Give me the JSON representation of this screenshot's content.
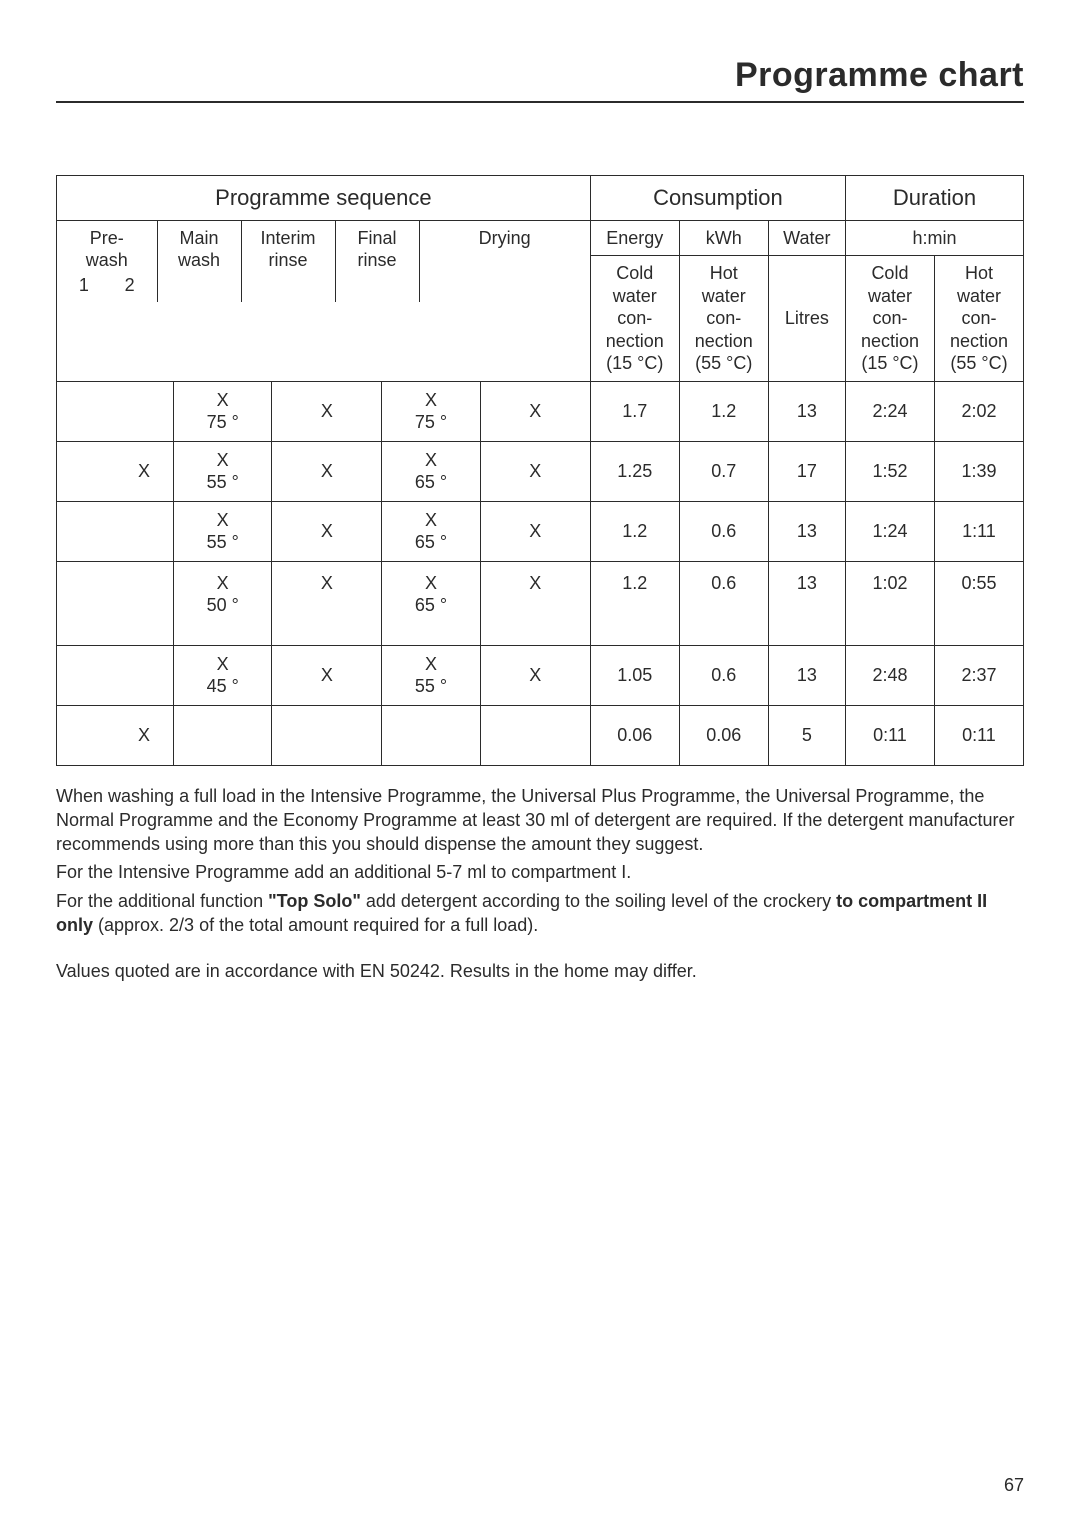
{
  "page": {
    "title": "Programme chart",
    "number": "67"
  },
  "table": {
    "groups": {
      "sequence": "Programme sequence",
      "consumption": "Consumption",
      "duration": "Duration"
    },
    "sub": {
      "energy": "Energy",
      "kwh": "kWh",
      "water": "Water",
      "hmin": "h:min"
    },
    "cols": {
      "prewash": "Pre-\nwash",
      "prewash_1": "1",
      "prewash_2": "2",
      "main_wash": "Main\nwash",
      "interim_rinse": "Interim\nrinse",
      "final_rinse": "Final\nrinse",
      "drying": "Drying",
      "cold_conn": "Cold\nwater\ncon-\nnection\n(15 °C)",
      "hot_conn": "Hot\nwater\ncon-\nnection\n(55 °C)",
      "litres": "Litres",
      "dur_cold": "Cold\nwater\ncon-\nnection\n(15 °C)",
      "dur_hot": "Hot\nwater\ncon-\nnection\n(55 °C)"
    },
    "rows": [
      {
        "pre1": "",
        "pre2": "",
        "main": "X\n75 °",
        "interim": "X",
        "final": "X\n75 °",
        "drying": "X",
        "e_cold": "1.7",
        "e_hot": "1.2",
        "water": "13",
        "d_cold": "2:24",
        "d_hot": "2:02"
      },
      {
        "pre1": "",
        "pre2": "X",
        "main": "X\n55 °",
        "interim": "X",
        "final": "X\n65 °",
        "drying": "X",
        "e_cold": "1.25",
        "e_hot": "0.7",
        "water": "17",
        "d_cold": "1:52",
        "d_hot": "1:39"
      },
      {
        "pre1": "",
        "pre2": "",
        "main": "X\n55 °",
        "interim": "X",
        "final": "X\n65 °",
        "drying": "X",
        "e_cold": "1.2",
        "e_hot": "0.6",
        "water": "13",
        "d_cold": "1:24",
        "d_hot": "1:11"
      },
      {
        "pre1": "",
        "pre2": "",
        "main": "X\n50 °",
        "interim": "X",
        "final": "X\n65 °",
        "drying": "X",
        "e_cold": "1.2",
        "e_hot": "0.6",
        "water": "13",
        "d_cold": "1:02",
        "d_hot": "0:55",
        "tall": true
      },
      {
        "pre1": "",
        "pre2": "",
        "main": "X\n45 °",
        "interim": "X",
        "final": "X\n55 °",
        "drying": "X",
        "e_cold": "1.05",
        "e_hot": "0.6",
        "water": "13",
        "d_cold": "2:48",
        "d_hot": "2:37"
      },
      {
        "pre1": "",
        "pre2": "X",
        "main": "",
        "interim": "",
        "final": "",
        "drying": "",
        "e_cold": "0.06",
        "e_hot": "0.06",
        "water": "5",
        "d_cold": "0:11",
        "d_hot": "0:11"
      }
    ]
  },
  "notes": {
    "p1": "When washing a full load in the Intensive Programme, the Universal Plus Programme, the Universal Programme, the Normal Programme and the Economy Programme at least 30 ml of detergent are required. If the detergent manufacturer recommends using more than this you should dispense the amount they suggest.",
    "p2": "For the Intensive Programme add an additional 5-7 ml to compartment I.",
    "p3_a": "For the additional function ",
    "p3_b": "\"Top Solo\"",
    "p3_c": " add detergent according to the soiling level of the crockery ",
    "p3_d": "to compartment II only",
    "p3_e": " (approx. 2/3 of the total amount required for a full load).",
    "p4": "Values quoted are in accordance with EN 50242. Results in the home may differ."
  },
  "widths": {
    "pre1": 50,
    "pre2": 50,
    "main": 84,
    "interim": 94,
    "final": 84,
    "drying": 94,
    "e_cold": 76,
    "e_hot": 76,
    "water": 66,
    "d_cold": 76,
    "d_hot": 76
  }
}
